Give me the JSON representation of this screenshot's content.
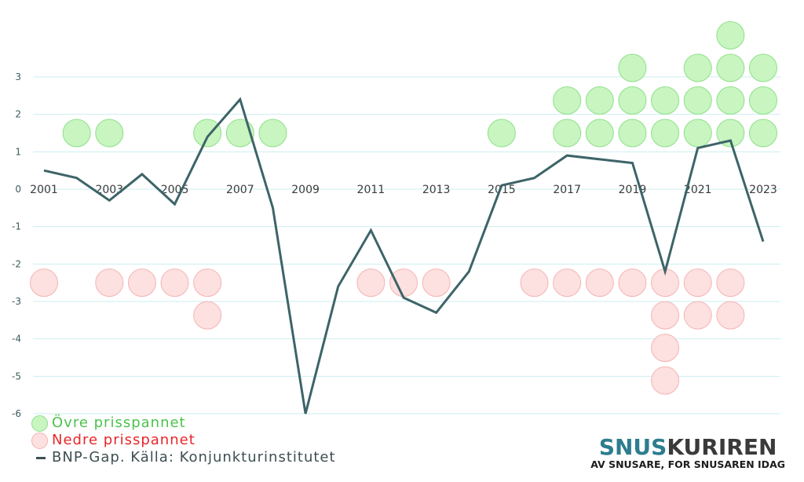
{
  "chart_data": {
    "type": "line",
    "x": [
      2001,
      2002,
      2003,
      2004,
      2005,
      2006,
      2007,
      2008,
      2009,
      2010,
      2011,
      2012,
      2013,
      2014,
      2015,
      2016,
      2017,
      2018,
      2019,
      2020,
      2021,
      2022,
      2023
    ],
    "x_tick_labels": [
      "2001",
      "2003",
      "2005",
      "2007",
      "2009",
      "2011",
      "2013",
      "2015",
      "2017",
      "2019",
      "2021",
      "2023"
    ],
    "x_tick_values": [
      2001,
      2003,
      2005,
      2007,
      2009,
      2011,
      2013,
      2015,
      2017,
      2019,
      2021,
      2023
    ],
    "y_tick_labels": [
      "3",
      "2",
      "1",
      "0",
      "-1",
      "-2",
      "-3",
      "-4",
      "-5",
      "-6"
    ],
    "y_tick_values": [
      3,
      2,
      1,
      0,
      -1,
      -2,
      -3,
      -4,
      -5,
      -6
    ],
    "ylim": [
      -6,
      4
    ],
    "grid": true,
    "series": [
      {
        "name": "BNP-Gap. Källa: Konjunkturinstitutet",
        "kind": "line",
        "color": "#3d6468",
        "values": [
          0.5,
          0.3,
          -0.3,
          0.4,
          -0.4,
          1.4,
          2.4,
          -0.5,
          -6.0,
          -2.6,
          -1.1,
          -2.9,
          -3.3,
          -2.2,
          0.1,
          0.3,
          0.9,
          0.8,
          0.7,
          -2.2,
          1.1,
          1.3,
          -1.4
        ]
      },
      {
        "name": "Övre prisspannet",
        "kind": "dots",
        "fill": "#c8f5c0",
        "stroke": "#8fe08a",
        "counts": [
          0,
          1,
          1,
          0,
          0,
          1,
          1,
          1,
          0,
          0,
          0,
          0,
          0,
          0,
          1,
          0,
          2,
          2,
          3,
          2,
          3,
          4,
          3
        ]
      },
      {
        "name": "Nedre prisspannet",
        "kind": "dots",
        "fill": "#fde0e0",
        "stroke": "#f5b3b3",
        "counts": [
          1,
          0,
          1,
          1,
          1,
          2,
          0,
          0,
          0,
          0,
          1,
          1,
          1,
          0,
          0,
          1,
          1,
          1,
          1,
          4,
          2,
          2,
          0
        ]
      }
    ],
    "legend_placement": "bottom-left"
  },
  "legend": {
    "upper_label": "Övre prisspannet",
    "upper_color": "#4cc24c",
    "lower_label": "Nedre prisspannet",
    "lower_color": "#e8262a",
    "line_label": "BNP-Gap. Källa: Konjunkturinstitutet",
    "line_color": "#3d4f52"
  },
  "brand": {
    "name_part1": "SNUS",
    "name_part2": "KURIREN",
    "color_part1": "#2d7d8f",
    "color_part2": "#3a3a3a",
    "tagline": "AV SNUSARE, FOR SNUSAREN IDAG"
  }
}
